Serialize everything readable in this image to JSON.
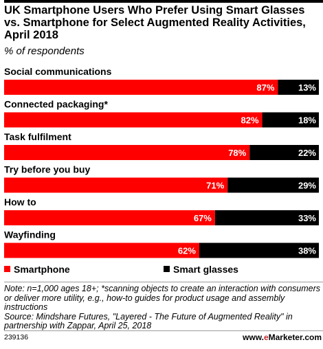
{
  "title": "UK Smartphone Users Who Prefer Using Smart Glasses vs. Smartphone for Select Augmented Reality Activities, April 2018",
  "subtitle": "% of respondents",
  "chart_data": {
    "type": "bar",
    "orientation": "horizontal",
    "stacked": true,
    "categories": [
      "Social communications",
      "Connected packaging*",
      "Task fulfilment",
      "Try before you buy",
      "How to",
      "Wayfinding"
    ],
    "series": [
      {
        "name": "Smartphone",
        "color": "#ff0000",
        "values": [
          87,
          82,
          78,
          71,
          67,
          62
        ],
        "labels": [
          "87%",
          "82%",
          "78%",
          "71%",
          "67%",
          "62%"
        ]
      },
      {
        "name": "Smart glasses",
        "color": "#000000",
        "values": [
          13,
          18,
          22,
          29,
          33,
          38
        ],
        "labels": [
          "13%",
          "18%",
          "22%",
          "29%",
          "33%",
          "38%"
        ]
      }
    ],
    "xlim": [
      0,
      100
    ],
    "legend": "bottom"
  },
  "legend": {
    "smartphone": "Smartphone",
    "smart_glasses": "Smart glasses"
  },
  "note": "Note: n=1,000 ages 18+; *scanning objects to create an interaction with consumers or deliver more utility, e.g., how-to guides for product usage and assembly instructions",
  "source": "Source: Mindshare Futures, \"Layered - The Future of Augmented Reality\" in partnership with Zappar, April 25, 2018",
  "chart_id": "239136",
  "brand": {
    "prefix": "www.",
    "e": "e",
    "suffix": "Marketer.com"
  }
}
